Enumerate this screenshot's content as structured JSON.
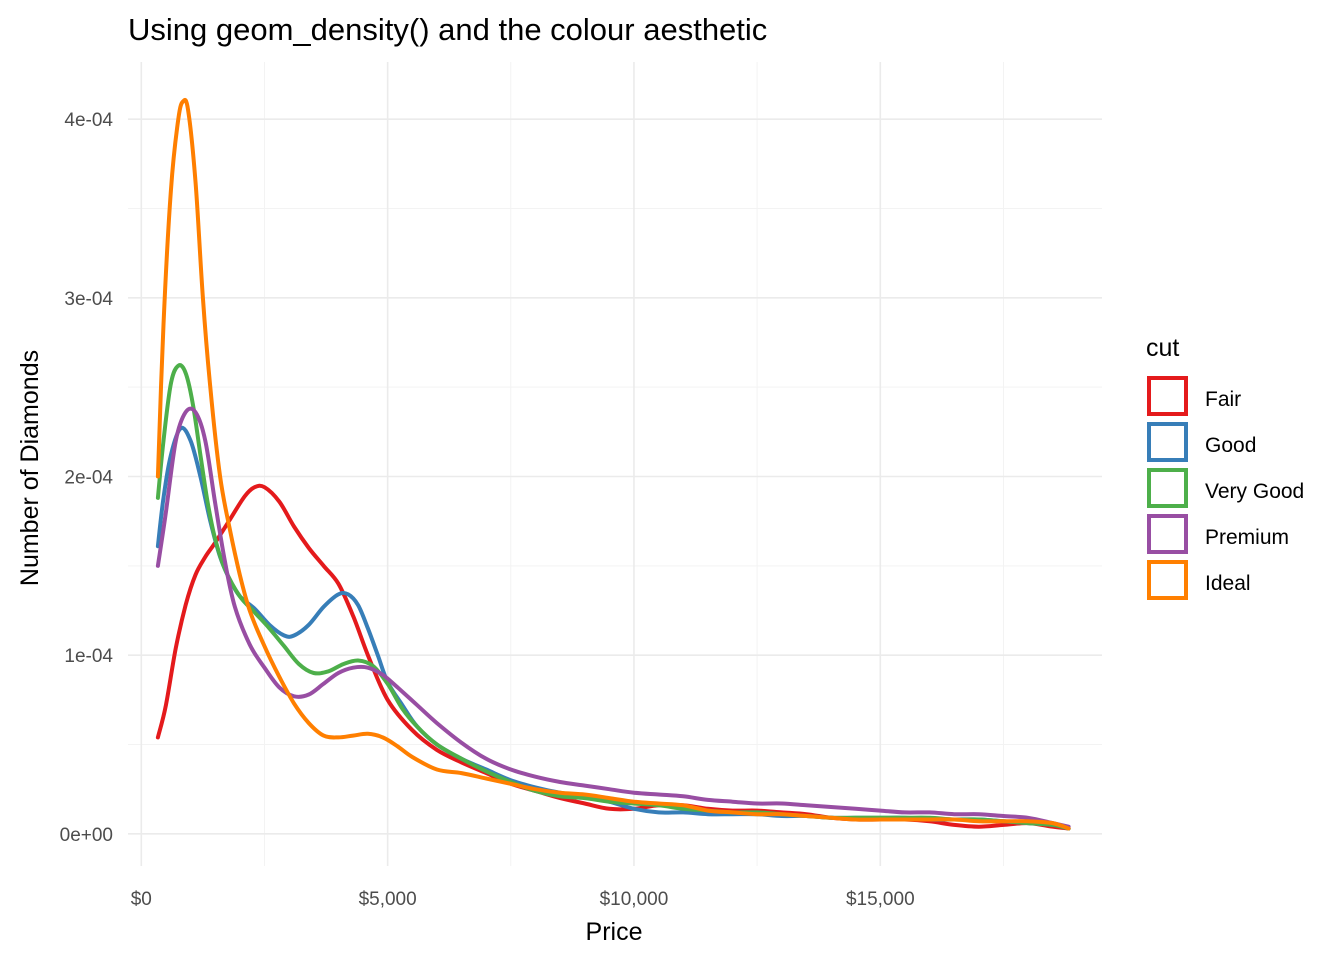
{
  "chart_data": {
    "type": "line",
    "title": "Using geom_density() and the colour aesthetic",
    "xlabel": "Price",
    "ylabel": "Number of Diamonds",
    "xlim": [
      -270,
      19500
    ],
    "ylim": [
      -1.8e-05,
      0.000432
    ],
    "x_ticks": [
      {
        "value": 0,
        "label": "$0"
      },
      {
        "value": 5000,
        "label": "$5,000"
      },
      {
        "value": 10000,
        "label": "$10,000"
      },
      {
        "value": 15000,
        "label": "$15,000"
      }
    ],
    "x_minor": [
      2500,
      7500,
      12500,
      17500
    ],
    "y_ticks": [
      {
        "value": 0,
        "label": "0e+00"
      },
      {
        "value": 0.0001,
        "label": "1e-04"
      },
      {
        "value": 0.0002,
        "label": "2e-04"
      },
      {
        "value": 0.0003,
        "label": "3e-04"
      },
      {
        "value": 0.0004,
        "label": "4e-04"
      }
    ],
    "y_minor": [
      5e-05,
      0.00015,
      0.00025,
      0.00035
    ],
    "grid": true,
    "legend": {
      "title": "cut",
      "position": "right"
    },
    "series": [
      {
        "name": "Fair",
        "color": "#e41a1c",
        "points": [
          [
            337,
            5.4e-05
          ],
          [
            500,
            7.2e-05
          ],
          [
            700,
            0.000104
          ],
          [
            900,
            0.000128
          ],
          [
            1100,
            0.000145
          ],
          [
            1300,
            0.000155
          ],
          [
            1500,
            0.000163
          ],
          [
            1800,
            0.000176
          ],
          [
            2100,
            0.000189
          ],
          [
            2300,
            0.000194
          ],
          [
            2500,
            0.000194
          ],
          [
            2800,
            0.000186
          ],
          [
            3100,
            0.000172
          ],
          [
            3400,
            0.00016
          ],
          [
            3700,
            0.00015
          ],
          [
            4000,
            0.00014
          ],
          [
            4300,
            0.000122
          ],
          [
            4600,
            0.0001
          ],
          [
            5000,
            7.5e-05
          ],
          [
            5500,
            5.8e-05
          ],
          [
            6000,
            4.7e-05
          ],
          [
            6500,
            4e-05
          ],
          [
            7000,
            3.4e-05
          ],
          [
            7500,
            2.8e-05
          ],
          [
            8000,
            2.4e-05
          ],
          [
            8500,
            2e-05
          ],
          [
            9000,
            1.7e-05
          ],
          [
            9500,
            1.4e-05
          ],
          [
            10000,
            1.4e-05
          ],
          [
            10500,
            1.6e-05
          ],
          [
            11000,
            1.6e-05
          ],
          [
            11500,
            1.4e-05
          ],
          [
            12000,
            1.3e-05
          ],
          [
            12500,
            1.3e-05
          ],
          [
            13000,
            1.2e-05
          ],
          [
            13500,
            1.1e-05
          ],
          [
            14000,
            9e-06
          ],
          [
            14500,
            8e-06
          ],
          [
            15000,
            8e-06
          ],
          [
            15500,
            8e-06
          ],
          [
            16000,
            7e-06
          ],
          [
            16500,
            5e-06
          ],
          [
            17000,
            4e-06
          ],
          [
            17500,
            5e-06
          ],
          [
            18000,
            6e-06
          ],
          [
            18500,
            4e-06
          ],
          [
            18823,
            3e-06
          ]
        ]
      },
      {
        "name": "Good",
        "color": "#377eb8",
        "points": [
          [
            337,
            0.000161
          ],
          [
            450,
            0.000188
          ],
          [
            600,
            0.000212
          ],
          [
            800,
            0.000227
          ],
          [
            1000,
            0.00022
          ],
          [
            1200,
            0.0002
          ],
          [
            1400,
            0.000175
          ],
          [
            1600,
            0.000155
          ],
          [
            1800,
            0.000142
          ],
          [
            2000,
            0.000133
          ],
          [
            2300,
            0.000126
          ],
          [
            2600,
            0.000117
          ],
          [
            2900,
            0.000111
          ],
          [
            3100,
            0.000111
          ],
          [
            3400,
            0.000117
          ],
          [
            3700,
            0.000127
          ],
          [
            4000,
            0.000134
          ],
          [
            4200,
            0.000134
          ],
          [
            4400,
            0.000128
          ],
          [
            4600,
            0.000115
          ],
          [
            4800,
            0.0001
          ],
          [
            5000,
            8.5e-05
          ],
          [
            5300,
            7.2e-05
          ],
          [
            5600,
            6e-05
          ],
          [
            6000,
            5e-05
          ],
          [
            6500,
            4.2e-05
          ],
          [
            7000,
            3.6e-05
          ],
          [
            7500,
            3e-05
          ],
          [
            8000,
            2.6e-05
          ],
          [
            8500,
            2.3e-05
          ],
          [
            9000,
            2.1e-05
          ],
          [
            9500,
            1.8e-05
          ],
          [
            10000,
            1.4e-05
          ],
          [
            10500,
            1.2e-05
          ],
          [
            11000,
            1.2e-05
          ],
          [
            11500,
            1.1e-05
          ],
          [
            12000,
            1.1e-05
          ],
          [
            12500,
            1.1e-05
          ],
          [
            13000,
            1e-05
          ],
          [
            13500,
            1e-05
          ],
          [
            14000,
            9e-06
          ],
          [
            14500,
            9e-06
          ],
          [
            15000,
            9e-06
          ],
          [
            15500,
            9e-06
          ],
          [
            16000,
            8e-06
          ],
          [
            16500,
            8e-06
          ],
          [
            17000,
            8e-06
          ],
          [
            17500,
            7e-06
          ],
          [
            18000,
            6e-06
          ],
          [
            18500,
            5e-06
          ],
          [
            18823,
            3e-06
          ]
        ]
      },
      {
        "name": "Very Good",
        "color": "#4daf4a",
        "points": [
          [
            337,
            0.000188
          ],
          [
            450,
            0.00022
          ],
          [
            600,
            0.000252
          ],
          [
            750,
            0.000262
          ],
          [
            900,
            0.000258
          ],
          [
            1050,
            0.00024
          ],
          [
            1200,
            0.000212
          ],
          [
            1350,
            0.000185
          ],
          [
            1500,
            0.000165
          ],
          [
            1700,
            0.000148
          ],
          [
            2000,
            0.000133
          ],
          [
            2300,
            0.000124
          ],
          [
            2600,
            0.000115
          ],
          [
            2900,
            0.000105
          ],
          [
            3200,
            9.5e-05
          ],
          [
            3500,
            9e-05
          ],
          [
            3800,
            9.1e-05
          ],
          [
            4100,
            9.5e-05
          ],
          [
            4400,
            9.7e-05
          ],
          [
            4700,
            9.4e-05
          ],
          [
            5000,
            8.4e-05
          ],
          [
            5300,
            7e-05
          ],
          [
            5600,
            6e-05
          ],
          [
            6000,
            5e-05
          ],
          [
            6500,
            4.2e-05
          ],
          [
            7000,
            3.5e-05
          ],
          [
            7500,
            2.9e-05
          ],
          [
            8000,
            2.4e-05
          ],
          [
            8500,
            2.1e-05
          ],
          [
            9000,
            2e-05
          ],
          [
            9500,
            1.8e-05
          ],
          [
            10000,
            1.7e-05
          ],
          [
            10500,
            1.6e-05
          ],
          [
            11000,
            1.4e-05
          ],
          [
            11500,
            1.3e-05
          ],
          [
            12000,
            1.2e-05
          ],
          [
            12500,
            1.2e-05
          ],
          [
            13000,
            1.1e-05
          ],
          [
            13500,
            1e-05
          ],
          [
            14000,
            9e-06
          ],
          [
            14500,
            9e-06
          ],
          [
            15000,
            9e-06
          ],
          [
            15500,
            9e-06
          ],
          [
            16000,
            9e-06
          ],
          [
            16500,
            8e-06
          ],
          [
            17000,
            8e-06
          ],
          [
            17500,
            7e-06
          ],
          [
            18000,
            6e-06
          ],
          [
            18500,
            5e-06
          ],
          [
            18823,
            3e-06
          ]
        ]
      },
      {
        "name": "Premium",
        "color": "#984ea3",
        "points": [
          [
            337,
            0.00015
          ],
          [
            500,
            0.00018
          ],
          [
            700,
            0.00022
          ],
          [
            900,
            0.000236
          ],
          [
            1100,
            0.000236
          ],
          [
            1300,
            0.00022
          ],
          [
            1500,
            0.000185
          ],
          [
            1700,
            0.000152
          ],
          [
            1900,
            0.000127
          ],
          [
            2200,
            0.000106
          ],
          [
            2500,
            9.3e-05
          ],
          [
            2800,
            8.2e-05
          ],
          [
            3100,
            7.7e-05
          ],
          [
            3400,
            7.8e-05
          ],
          [
            3700,
            8.4e-05
          ],
          [
            4000,
            9e-05
          ],
          [
            4300,
            9.3e-05
          ],
          [
            4600,
            9.3e-05
          ],
          [
            4900,
            8.9e-05
          ],
          [
            5200,
            8.2e-05
          ],
          [
            5600,
            7.2e-05
          ],
          [
            6000,
            6.2e-05
          ],
          [
            6500,
            5.1e-05
          ],
          [
            7000,
            4.2e-05
          ],
          [
            7500,
            3.6e-05
          ],
          [
            8000,
            3.2e-05
          ],
          [
            8500,
            2.9e-05
          ],
          [
            9000,
            2.7e-05
          ],
          [
            9500,
            2.5e-05
          ],
          [
            10000,
            2.3e-05
          ],
          [
            10500,
            2.2e-05
          ],
          [
            11000,
            2.1e-05
          ],
          [
            11500,
            1.9e-05
          ],
          [
            12000,
            1.8e-05
          ],
          [
            12500,
            1.7e-05
          ],
          [
            13000,
            1.7e-05
          ],
          [
            13500,
            1.6e-05
          ],
          [
            14000,
            1.5e-05
          ],
          [
            14500,
            1.4e-05
          ],
          [
            15000,
            1.3e-05
          ],
          [
            15500,
            1.2e-05
          ],
          [
            16000,
            1.2e-05
          ],
          [
            16500,
            1.1e-05
          ],
          [
            17000,
            1.1e-05
          ],
          [
            17500,
            1e-05
          ],
          [
            18000,
            9e-06
          ],
          [
            18500,
            6e-06
          ],
          [
            18823,
            4e-06
          ]
        ]
      },
      {
        "name": "Ideal",
        "color": "#ff7f00",
        "points": [
          [
            337,
            0.0002
          ],
          [
            450,
            0.000285
          ],
          [
            600,
            0.00036
          ],
          [
            750,
            0.0004
          ],
          [
            850,
            0.00041
          ],
          [
            950,
            0.000405
          ],
          [
            1100,
            0.000365
          ],
          [
            1250,
            0.0003
          ],
          [
            1400,
            0.00025
          ],
          [
            1600,
            0.0002
          ],
          [
            1800,
            0.00017
          ],
          [
            2000,
            0.000145
          ],
          [
            2200,
            0.000125
          ],
          [
            2500,
            0.000105
          ],
          [
            2800,
            8.8e-05
          ],
          [
            3100,
            7.3e-05
          ],
          [
            3400,
            6.2e-05
          ],
          [
            3700,
            5.5e-05
          ],
          [
            4000,
            5.4e-05
          ],
          [
            4300,
            5.5e-05
          ],
          [
            4600,
            5.6e-05
          ],
          [
            4900,
            5.4e-05
          ],
          [
            5200,
            4.9e-05
          ],
          [
            5500,
            4.3e-05
          ],
          [
            6000,
            3.6e-05
          ],
          [
            6500,
            3.4e-05
          ],
          [
            7000,
            3.1e-05
          ],
          [
            7500,
            2.8e-05
          ],
          [
            8000,
            2.5e-05
          ],
          [
            8500,
            2.3e-05
          ],
          [
            9000,
            2.2e-05
          ],
          [
            9500,
            2e-05
          ],
          [
            10000,
            1.8e-05
          ],
          [
            10500,
            1.7e-05
          ],
          [
            11000,
            1.6e-05
          ],
          [
            11500,
            1.3e-05
          ],
          [
            12000,
            1.2e-05
          ],
          [
            12500,
            1.1e-05
          ],
          [
            13000,
            1.1e-05
          ],
          [
            13500,
            1e-05
          ],
          [
            14000,
            9e-06
          ],
          [
            14500,
            8e-06
          ],
          [
            15000,
            8e-06
          ],
          [
            15500,
            8e-06
          ],
          [
            16000,
            8e-06
          ],
          [
            16500,
            8e-06
          ],
          [
            17000,
            7e-06
          ],
          [
            17500,
            7e-06
          ],
          [
            18000,
            7e-06
          ],
          [
            18500,
            6e-06
          ],
          [
            18823,
            3e-06
          ]
        ]
      }
    ]
  }
}
